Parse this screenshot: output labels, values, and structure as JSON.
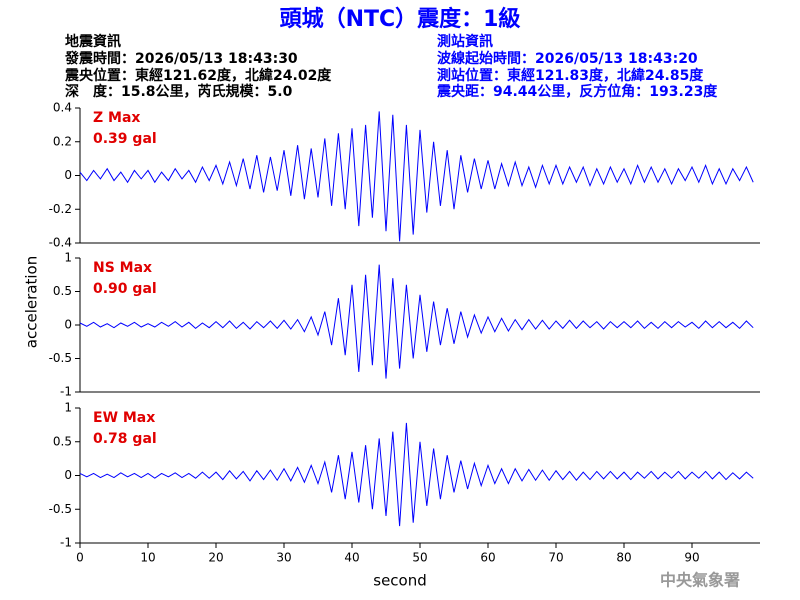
{
  "header": {
    "title": "頭城（NTC）震度：1級",
    "left": [
      "地震資訊",
      "發震時間：2026/05/13 18:43:30",
      "震央位置：東經121.62度，北緯24.02度",
      "深　度：15.8公里，芮氏規模：5.0"
    ],
    "right": [
      "測站資訊",
      "波線起始時間：2026/05/13 18:43:20",
      "測站位置：東經121.83度，北緯24.85度",
      "震央距：94.44公里，反方位角：193.23度"
    ]
  },
  "axis_labels": {
    "y": "acceleration",
    "x": "second"
  },
  "footer": "中央氣象署",
  "chart_data": [
    {
      "type": "line",
      "annotations": [
        "Z Max",
        "0.39 gal"
      ],
      "annotation_color": "#e00000",
      "xlim": [
        0,
        100
      ],
      "ylim": [
        -0.4,
        0.4
      ],
      "yticks": [
        -0.4,
        -0.2,
        0,
        0.2,
        0.4
      ],
      "x": [
        0,
        1,
        2,
        3,
        4,
        5,
        6,
        7,
        8,
        9,
        10,
        11,
        12,
        13,
        14,
        15,
        16,
        17,
        18,
        19,
        20,
        21,
        22,
        23,
        24,
        25,
        26,
        27,
        28,
        29,
        30,
        31,
        32,
        33,
        34,
        35,
        36,
        37,
        38,
        39,
        40,
        41,
        42,
        43,
        44,
        45,
        46,
        47,
        48,
        49,
        50,
        51,
        52,
        53,
        54,
        55,
        56,
        57,
        58,
        59,
        60,
        61,
        62,
        63,
        64,
        65,
        66,
        67,
        68,
        69,
        70,
        71,
        72,
        73,
        74,
        75,
        76,
        77,
        78,
        79,
        80,
        81,
        82,
        83,
        84,
        85,
        86,
        87,
        88,
        89,
        90,
        91,
        92,
        93,
        94,
        95,
        96,
        97,
        98,
        99
      ],
      "series": [
        {
          "color": "#0000ff",
          "values": [
            0.02,
            -0.03,
            0.03,
            -0.02,
            0.04,
            -0.03,
            0.02,
            -0.04,
            0.03,
            -0.02,
            0.03,
            -0.04,
            0.02,
            -0.03,
            0.04,
            -0.02,
            0.03,
            -0.04,
            0.05,
            -0.03,
            0.06,
            -0.05,
            0.08,
            -0.06,
            0.1,
            -0.08,
            0.12,
            -0.1,
            0.11,
            -0.09,
            0.15,
            -0.12,
            0.18,
            -0.14,
            0.16,
            -0.13,
            0.22,
            -0.18,
            0.25,
            -0.2,
            0.28,
            -0.3,
            0.3,
            -0.25,
            0.38,
            -0.33,
            0.36,
            -0.39,
            0.3,
            -0.35,
            0.27,
            -0.22,
            0.2,
            -0.18,
            0.15,
            -0.2,
            0.12,
            -0.1,
            0.1,
            -0.08,
            0.09,
            -0.08,
            0.07,
            -0.06,
            0.08,
            -0.06,
            0.05,
            -0.07,
            0.06,
            -0.05,
            0.06,
            -0.05,
            0.05,
            -0.04,
            0.05,
            -0.06,
            0.04,
            -0.05,
            0.05,
            -0.04,
            0.04,
            -0.05,
            0.06,
            -0.04,
            0.05,
            -0.04,
            0.04,
            -0.05,
            0.04,
            -0.03,
            0.05,
            -0.04,
            0.06,
            -0.05,
            0.04,
            -0.05,
            0.04,
            -0.03,
            0.05,
            -0.04
          ]
        }
      ]
    },
    {
      "type": "line",
      "annotations": [
        "NS Max",
        "0.90 gal"
      ],
      "annotation_color": "#e00000",
      "xlim": [
        0,
        100
      ],
      "ylim": [
        -1,
        1
      ],
      "yticks": [
        -1,
        -0.5,
        0,
        0.5,
        1
      ],
      "x": [
        0,
        1,
        2,
        3,
        4,
        5,
        6,
        7,
        8,
        9,
        10,
        11,
        12,
        13,
        14,
        15,
        16,
        17,
        18,
        19,
        20,
        21,
        22,
        23,
        24,
        25,
        26,
        27,
        28,
        29,
        30,
        31,
        32,
        33,
        34,
        35,
        36,
        37,
        38,
        39,
        40,
        41,
        42,
        43,
        44,
        45,
        46,
        47,
        48,
        49,
        50,
        51,
        52,
        53,
        54,
        55,
        56,
        57,
        58,
        59,
        60,
        61,
        62,
        63,
        64,
        65,
        66,
        67,
        68,
        69,
        70,
        71,
        72,
        73,
        74,
        75,
        76,
        77,
        78,
        79,
        80,
        81,
        82,
        83,
        84,
        85,
        86,
        87,
        88,
        89,
        90,
        91,
        92,
        93,
        94,
        95,
        96,
        97,
        98,
        99
      ],
      "series": [
        {
          "color": "#0000ff",
          "values": [
            0.03,
            -0.02,
            0.04,
            -0.03,
            0.02,
            -0.04,
            0.03,
            -0.02,
            0.04,
            -0.03,
            0.02,
            -0.03,
            0.04,
            -0.02,
            0.05,
            -0.03,
            0.04,
            -0.05,
            0.03,
            -0.04,
            0.05,
            -0.04,
            0.06,
            -0.05,
            0.04,
            -0.06,
            0.05,
            -0.04,
            0.06,
            -0.05,
            0.07,
            -0.06,
            0.08,
            -0.1,
            0.12,
            -0.15,
            0.2,
            -0.3,
            0.4,
            -0.45,
            0.6,
            -0.7,
            0.75,
            -0.6,
            0.9,
            -0.8,
            0.7,
            -0.65,
            0.6,
            -0.5,
            0.45,
            -0.4,
            0.35,
            -0.3,
            0.25,
            -0.28,
            0.2,
            -0.18,
            0.15,
            -0.12,
            0.12,
            -0.1,
            0.1,
            -0.09,
            0.08,
            -0.07,
            0.08,
            -0.06,
            0.07,
            -0.06,
            0.06,
            -0.05,
            0.07,
            -0.05,
            0.06,
            -0.04,
            0.05,
            -0.06,
            0.05,
            -0.04,
            0.05,
            -0.04,
            0.06,
            -0.05,
            0.04,
            -0.05,
            0.05,
            -0.04,
            0.05,
            -0.03,
            0.04,
            -0.05,
            0.06,
            -0.04,
            0.05,
            -0.04,
            0.04,
            -0.05,
            0.06,
            -0.04
          ]
        }
      ]
    },
    {
      "type": "line",
      "annotations": [
        "EW Max",
        "0.78 gal"
      ],
      "annotation_color": "#e00000",
      "xlim": [
        0,
        100
      ],
      "ylim": [
        -1,
        1
      ],
      "yticks": [
        -1,
        -0.5,
        0,
        0.5,
        1
      ],
      "xticks": [
        0,
        10,
        20,
        30,
        40,
        50,
        60,
        70,
        80,
        90
      ],
      "x": [
        0,
        1,
        2,
        3,
        4,
        5,
        6,
        7,
        8,
        9,
        10,
        11,
        12,
        13,
        14,
        15,
        16,
        17,
        18,
        19,
        20,
        21,
        22,
        23,
        24,
        25,
        26,
        27,
        28,
        29,
        30,
        31,
        32,
        33,
        34,
        35,
        36,
        37,
        38,
        39,
        40,
        41,
        42,
        43,
        44,
        45,
        46,
        47,
        48,
        49,
        50,
        51,
        52,
        53,
        54,
        55,
        56,
        57,
        58,
        59,
        60,
        61,
        62,
        63,
        64,
        65,
        66,
        67,
        68,
        69,
        70,
        71,
        72,
        73,
        74,
        75,
        76,
        77,
        78,
        79,
        80,
        81,
        82,
        83,
        84,
        85,
        86,
        87,
        88,
        89,
        90,
        91,
        92,
        93,
        94,
        95,
        96,
        97,
        98,
        99
      ],
      "series": [
        {
          "color": "#0000ff",
          "values": [
            0.03,
            -0.02,
            0.03,
            -0.03,
            0.02,
            -0.03,
            0.04,
            -0.02,
            0.03,
            -0.03,
            0.03,
            -0.04,
            0.03,
            -0.02,
            0.04,
            -0.03,
            0.03,
            -0.04,
            0.05,
            -0.04,
            0.05,
            -0.06,
            0.07,
            -0.05,
            0.06,
            -0.08,
            0.07,
            -0.06,
            0.08,
            -0.07,
            0.1,
            -0.08,
            0.12,
            -0.1,
            0.15,
            -0.12,
            0.2,
            -0.25,
            0.3,
            -0.35,
            0.35,
            -0.4,
            0.45,
            -0.5,
            0.55,
            -0.6,
            0.65,
            -0.75,
            0.78,
            -0.7,
            0.5,
            -0.45,
            0.4,
            -0.35,
            0.3,
            -0.25,
            0.22,
            -0.2,
            0.18,
            -0.15,
            0.15,
            -0.12,
            0.1,
            -0.12,
            0.1,
            -0.08,
            0.09,
            -0.07,
            0.08,
            -0.07,
            0.07,
            -0.06,
            0.06,
            -0.07,
            0.05,
            -0.06,
            0.06,
            -0.05,
            0.06,
            -0.05,
            0.05,
            -0.06,
            0.05,
            -0.04,
            0.06,
            -0.05,
            0.05,
            -0.04,
            0.06,
            -0.05,
            0.05,
            -0.04,
            0.06,
            -0.05,
            0.05,
            -0.06,
            0.04,
            -0.05,
            0.05,
            -0.04
          ]
        }
      ]
    }
  ]
}
